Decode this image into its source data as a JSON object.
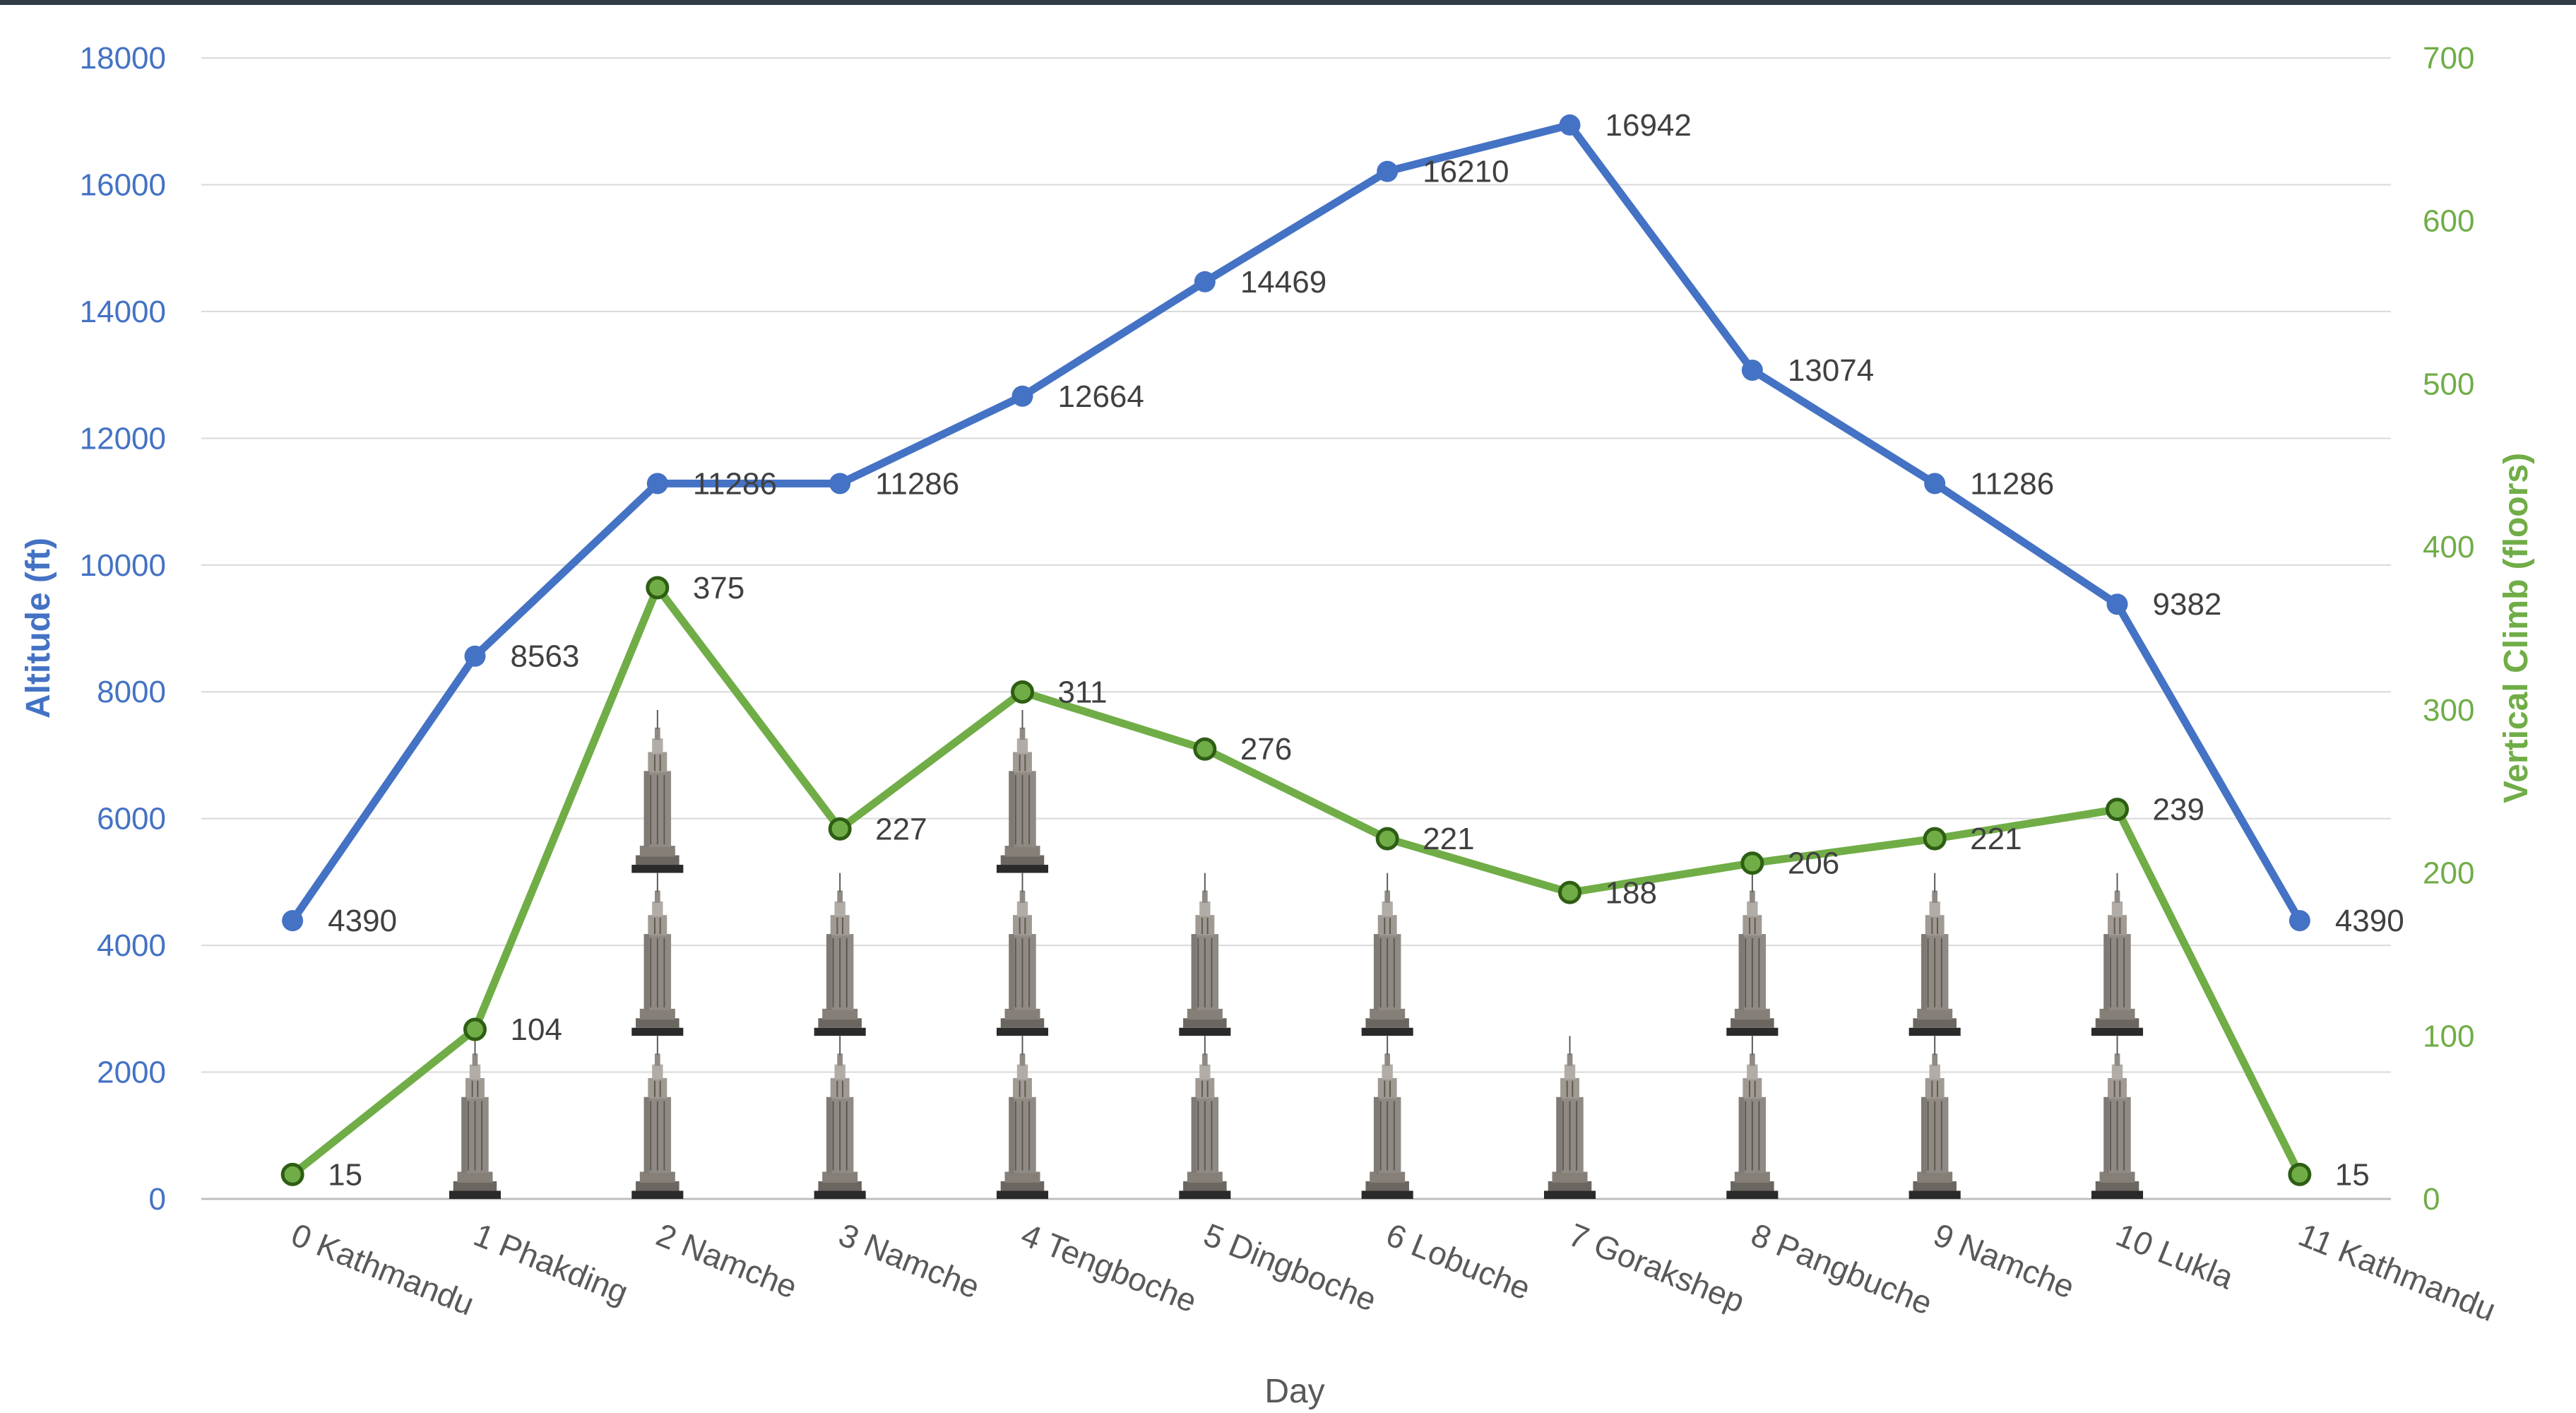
{
  "chart_data": {
    "type": "line",
    "xlabel": "Day",
    "ylabel_left": "Altitude (ft)",
    "ylabel_right": "Vertical Climb (floors)",
    "categories": [
      "0 Kathmandu",
      "1 Phakding",
      "2 Namche",
      "3 Namche",
      "4 Tengboche",
      "5 Dingboche",
      "6 Lobuche",
      "7 Gorakshep",
      "8 Pangbuche",
      "9 Namche",
      "10 Lukla",
      "11 Kathmandu"
    ],
    "ylim_left": [
      0,
      18000
    ],
    "yticks_left": [
      "0",
      "2000",
      "4000",
      "6000",
      "8000",
      "10000",
      "12000",
      "14000",
      "16000",
      "18000"
    ],
    "ylim_right": [
      0,
      700
    ],
    "yticks_right": [
      "0",
      "100",
      "200",
      "300",
      "400",
      "500",
      "600",
      "700"
    ],
    "grid": true,
    "series": [
      {
        "axis": "left",
        "color": "#4472c4",
        "values": [
          4390,
          8563,
          11286,
          11286,
          12664,
          14469,
          16210,
          16942,
          13074,
          11286,
          9382,
          4390
        ],
        "labels": [
          "4390",
          "8563",
          "11286",
          "11286",
          "12664",
          "14469",
          "16210",
          "16942",
          "13074",
          "11286",
          "9382",
          "4390"
        ]
      },
      {
        "axis": "right",
        "color": "#70ad47",
        "values": [
          15,
          104,
          375,
          227,
          311,
          276,
          221,
          188,
          206,
          221,
          239,
          15
        ],
        "labels": [
          "15",
          "104",
          "375",
          "227",
          "311",
          "276",
          "221",
          "188",
          "206",
          "221",
          "239",
          "15"
        ]
      }
    ],
    "building_icon": "skyscraper-icon",
    "building_unit_floors": 100
  }
}
